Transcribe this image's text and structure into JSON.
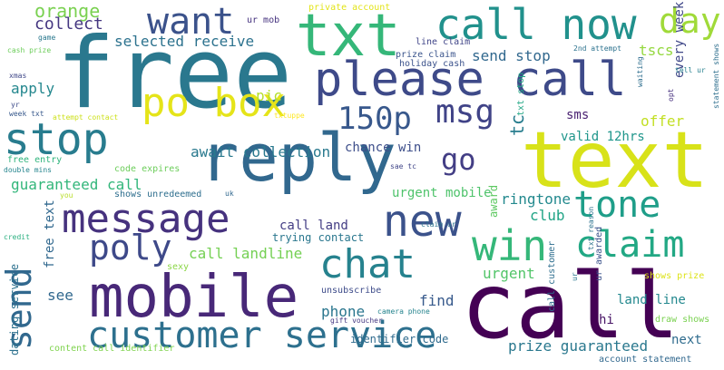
{
  "palette": {
    "dark_purple": "#440154",
    "indigo": "#3b528b",
    "blue": "#31688e",
    "teal": "#21918c",
    "green": "#35b779",
    "lime": "#90d743",
    "yellow": "#d8e219"
  },
  "words": [
    {
      "text": "free",
      "color": "#2a788e",
      "rotated": false
    },
    {
      "text": "call",
      "color": "#440154",
      "rotated": false
    },
    {
      "text": "text",
      "color": "#d8e219",
      "rotated": false
    },
    {
      "text": "txt",
      "color": "#35b779",
      "rotated": false
    },
    {
      "text": "reply",
      "color": "#31688e",
      "rotated": false
    },
    {
      "text": "mobile",
      "color": "#482878",
      "rotated": false
    },
    {
      "text": "please call",
      "color": "#3e4a89",
      "rotated": false
    },
    {
      "text": "call now",
      "color": "#21918c",
      "rotated": false
    },
    {
      "text": "new",
      "color": "#3b528b",
      "rotated": false
    },
    {
      "text": "message",
      "color": "#46327e",
      "rotated": false
    },
    {
      "text": "stop",
      "color": "#287c8e",
      "rotated": false
    },
    {
      "text": "customer service",
      "color": "#2d708e",
      "rotated": false
    },
    {
      "text": "po box",
      "color": "#e5e419",
      "rotated": false
    },
    {
      "text": "chat",
      "color": "#26828e",
      "rotated": false
    },
    {
      "text": "win",
      "color": "#35b779",
      "rotated": false
    },
    {
      "text": "tone",
      "color": "#1f9e89",
      "rotated": false
    },
    {
      "text": "claim",
      "color": "#22a884",
      "rotated": false
    },
    {
      "text": "poly",
      "color": "#3e4989",
      "rotated": false
    },
    {
      "text": "want",
      "color": "#3b528b",
      "rotated": false
    },
    {
      "text": "150p",
      "color": "#38588c",
      "rotated": false
    },
    {
      "text": "msg",
      "color": "#404387",
      "rotated": false
    },
    {
      "text": "send",
      "color": "#31688e",
      "rotated": true
    },
    {
      "text": "day",
      "color": "#a0da39",
      "rotated": false
    },
    {
      "text": "go",
      "color": "#433e85",
      "rotated": false
    },
    {
      "text": "orange",
      "color": "#7ad151",
      "rotated": false
    },
    {
      "text": "collect",
      "color": "#453781",
      "rotated": false
    },
    {
      "text": "selected receive",
      "color": "#2c728e",
      "rotated": false
    },
    {
      "text": "send stop",
      "color": "#31688e",
      "rotated": false
    },
    {
      "text": "tscs",
      "color": "#95d840",
      "rotated": false
    },
    {
      "text": "every week",
      "color": "#3f4788",
      "rotated": true
    },
    {
      "text": "apply",
      "color": "#24878e",
      "rotated": false
    },
    {
      "text": "pic",
      "color": "#b5de2b",
      "rotated": false
    },
    {
      "text": "offer",
      "color": "#c2df23",
      "rotated": false
    },
    {
      "text": "sms",
      "color": "#481f70",
      "rotated": false
    },
    {
      "text": "tc",
      "color": "#287d8e",
      "rotated": true
    },
    {
      "text": "valid 12hrs",
      "color": "#1f968b",
      "rotated": false
    },
    {
      "text": "chance win",
      "color": "#3d4e8a",
      "rotated": false
    },
    {
      "text": "await collection",
      "color": "#29798e",
      "rotated": false
    },
    {
      "text": "guaranteed call",
      "color": "#32b67a",
      "rotated": false
    },
    {
      "text": "urgent mobile",
      "color": "#4ec36b",
      "rotated": false
    },
    {
      "text": "ringtone",
      "color": "#23898e",
      "rotated": false
    },
    {
      "text": "club",
      "color": "#20a486",
      "rotated": false
    },
    {
      "text": "call land",
      "color": "#433d84",
      "rotated": false
    },
    {
      "text": "trying contact",
      "color": "#2a778e",
      "rotated": false
    },
    {
      "text": "call landline",
      "color": "#75d054",
      "rotated": false
    },
    {
      "text": "urgent",
      "color": "#52c569",
      "rotated": false
    },
    {
      "text": "find",
      "color": "#375a8c",
      "rotated": false
    },
    {
      "text": "phone",
      "color": "#2a768e",
      "rotated": false
    },
    {
      "text": "see",
      "color": "#31688e",
      "rotated": false
    },
    {
      "text": "prize guaranteed",
      "color": "#2a788e",
      "rotated": false
    },
    {
      "text": "land line",
      "color": "#23888e",
      "rotated": false
    },
    {
      "text": "next",
      "color": "#2f6c8e",
      "rotated": false
    },
    {
      "text": "hi",
      "color": "#471365",
      "rotated": false
    },
    {
      "text": "unsubscribe",
      "color": "#3e4c8a",
      "rotated": false
    },
    {
      "text": "identifier code",
      "color": "#2f6b8e",
      "rotated": false
    },
    {
      "text": "award",
      "color": "#5ec962",
      "rotated": true
    },
    {
      "text": "free text",
      "color": "#31688e",
      "rotated": true
    },
    {
      "text": "dating service",
      "color": "#2d718e",
      "rotated": true
    },
    {
      "text": "free entry",
      "color": "#2fb47c",
      "rotated": false
    },
    {
      "text": "code expires",
      "color": "#6ccd5a",
      "rotated": false
    },
    {
      "text": "shows unredeemed",
      "color": "#2e6e8e",
      "rotated": false
    },
    {
      "text": "ur mob",
      "color": "#46337f",
      "rotated": false
    },
    {
      "text": "private account",
      "color": "#e2e418",
      "rotated": false
    },
    {
      "text": "line claim",
      "color": "#404588",
      "rotated": false
    },
    {
      "text": "prize claim",
      "color": "#3a548c",
      "rotated": false
    },
    {
      "text": "holiday cash",
      "color": "#3b528b",
      "rotated": false
    },
    {
      "text": "2nd attempt",
      "color": "#2c728e",
      "rotated": false
    },
    {
      "text": "tell ur",
      "color": "#27808e",
      "rotated": false
    },
    {
      "text": "statement shows",
      "color": "#2e6f8e",
      "rotated": true
    },
    {
      "text": "cash prize",
      "color": "#6ccd5a",
      "rotated": false
    },
    {
      "text": "game",
      "color": "#2a788e",
      "rotated": false
    },
    {
      "text": "xmas",
      "color": "#3f4788",
      "rotated": false
    },
    {
      "text": "week txt",
      "color": "#38598c",
      "rotated": false
    },
    {
      "text": "attempt contact",
      "color": "#cde11d",
      "rotated": false
    },
    {
      "text": "txtuppe",
      "color": "#fde725",
      "rotated": false
    },
    {
      "text": "txt stop",
      "color": "#22a785",
      "rotated": true
    },
    {
      "text": "opt",
      "color": "#46307e",
      "rotated": true
    },
    {
      "text": "double mins",
      "color": "#25858e",
      "rotated": false
    },
    {
      "text": "sae tc",
      "color": "#404588",
      "rotated": false
    },
    {
      "text": "uk",
      "color": "#31688e",
      "rotated": false
    },
    {
      "text": "credit",
      "color": "#29af7f",
      "rotated": false
    },
    {
      "text": "claim ur",
      "color": "#2c738e",
      "rotated": false
    },
    {
      "text": "ur awarded",
      "color": "#3b528b",
      "rotated": true
    },
    {
      "text": "call customer",
      "color": "#2e6e8e",
      "rotated": true
    },
    {
      "text": "camera phone",
      "color": "#25848e",
      "rotated": false
    },
    {
      "text": "gift voucher",
      "color": "#453882",
      "rotated": false
    },
    {
      "text": "content call identifier",
      "color": "#7fd34e",
      "rotated": false
    },
    {
      "text": "account statement",
      "color": "#31688e",
      "rotated": false
    },
    {
      "text": "draw shows",
      "color": "#7ad151",
      "rotated": false
    },
    {
      "text": "shows prize",
      "color": "#dde318",
      "rotated": false
    },
    {
      "text": "sexy",
      "color": "#8bd646",
      "rotated": false
    },
    {
      "text": "you",
      "color": "#b8de29",
      "rotated": false
    },
    {
      "text": "ur",
      "color": "#2a788e",
      "rotated": true
    },
    {
      "text": "waiting",
      "color": "#2e6e8e",
      "rotated": true
    },
    {
      "text": "yr",
      "color": "#3e4c8a",
      "rotated": false
    },
    {
      "text": "txt reason",
      "color": "#2c728e",
      "rotated": true
    }
  ]
}
